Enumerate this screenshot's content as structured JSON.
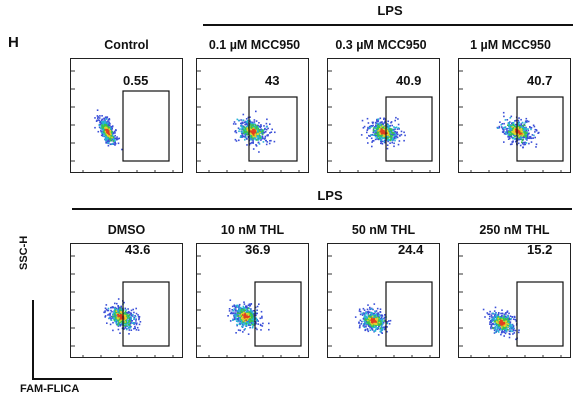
{
  "panel_letter": "H",
  "group_top": {
    "label": "LPS"
  },
  "group_bottom": {
    "label": "LPS"
  },
  "axes": {
    "y": "SSC-H",
    "x": "FAM-FLICA"
  },
  "chart_data": [
    {
      "type": "scatter",
      "title": "Control",
      "gate_percent": "0.55"
    },
    {
      "type": "scatter",
      "title": "0.1 µM MCC950",
      "gate_percent": "43"
    },
    {
      "type": "scatter",
      "title": "0.3 µM MCC950",
      "gate_percent": "40.9"
    },
    {
      "type": "scatter",
      "title": "1 µM MCC950",
      "gate_percent": "40.7"
    },
    {
      "type": "scatter",
      "title": "DMSO",
      "gate_percent": "43.6"
    },
    {
      "type": "scatter",
      "title": "10 nM THL",
      "gate_percent": "36.9"
    },
    {
      "type": "scatter",
      "title": "50 nM THL",
      "gate_percent": "24.4"
    },
    {
      "type": "scatter",
      "title": "250 nM THL",
      "gate_percent": "15.2"
    }
  ]
}
